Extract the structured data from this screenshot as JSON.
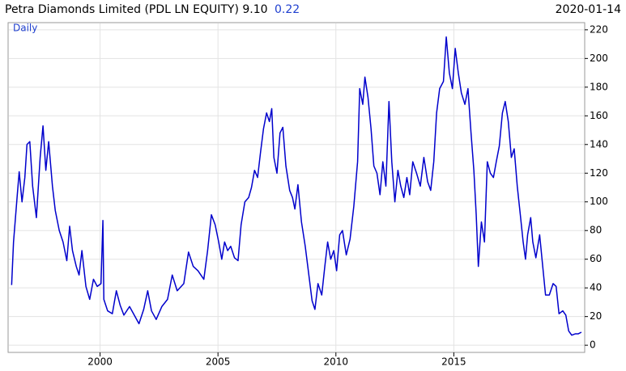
{
  "chart_data": {
    "type": "line",
    "title": "Petra Diamonds Limited (PDL LN EQUITY) 9.10",
    "title_change": "0.22",
    "date": "2020-01-14",
    "series_label": "Daily",
    "color": "#0000cc",
    "grid": true,
    "xlim": [
      1996.1,
      2020.55
    ],
    "xticks": [
      2000,
      2005,
      2010,
      2015
    ],
    "ylim": [
      -5,
      225
    ],
    "yticks": [
      0,
      20,
      40,
      60,
      80,
      100,
      120,
      140,
      160,
      180,
      200,
      220
    ],
    "x": [
      1996.25,
      1996.33,
      1996.49,
      1996.57,
      1996.69,
      1996.81,
      1996.9,
      1997.02,
      1997.14,
      1997.3,
      1997.46,
      1997.58,
      1997.7,
      1997.82,
      1997.98,
      1998.1,
      1998.27,
      1998.43,
      1998.59,
      1998.71,
      1998.83,
      1998.99,
      1999.11,
      1999.23,
      1999.4,
      1999.56,
      1999.72,
      1999.88,
      2000.04,
      2000.12,
      2000.16,
      2000.32,
      2000.52,
      2000.69,
      2000.85,
      2001.01,
      2001.25,
      2001.45,
      2001.65,
      2001.85,
      2002.02,
      2002.18,
      2002.38,
      2002.62,
      2002.86,
      2003.06,
      2003.27,
      2003.55,
      2003.75,
      2003.95,
      2004.15,
      2004.4,
      2004.56,
      2004.72,
      2004.88,
      2005.03,
      2005.16,
      2005.28,
      2005.41,
      2005.54,
      2005.7,
      2005.85,
      2005.98,
      2006.14,
      2006.3,
      2006.42,
      2006.55,
      2006.68,
      2006.8,
      2006.93,
      2007.06,
      2007.18,
      2007.28,
      2007.37,
      2007.5,
      2007.63,
      2007.75,
      2007.88,
      2008.04,
      2008.16,
      2008.26,
      2008.39,
      2008.54,
      2008.7,
      2008.83,
      2008.99,
      2009.11,
      2009.24,
      2009.4,
      2009.53,
      2009.65,
      2009.78,
      2009.91,
      2010.03,
      2010.16,
      2010.28,
      2010.44,
      2010.6,
      2010.76,
      2010.92,
      2011.01,
      2011.14,
      2011.23,
      2011.36,
      2011.49,
      2011.61,
      2011.74,
      2011.87,
      2011.99,
      2012.12,
      2012.25,
      2012.37,
      2012.5,
      2012.63,
      2012.75,
      2012.88,
      2013.01,
      2013.13,
      2013.26,
      2013.42,
      2013.58,
      2013.73,
      2013.89,
      2014.02,
      2014.15,
      2014.27,
      2014.4,
      2014.56,
      2014.68,
      2014.81,
      2014.94,
      2015.06,
      2015.19,
      2015.32,
      2015.47,
      2015.6,
      2015.73,
      2015.85,
      2015.95,
      2016.04,
      2016.17,
      2016.3,
      2016.42,
      2016.55,
      2016.68,
      2016.8,
      2016.93,
      2017.06,
      2017.18,
      2017.31,
      2017.44,
      2017.56,
      2017.69,
      2017.82,
      2017.94,
      2018.04,
      2018.13,
      2018.26,
      2018.35,
      2018.48,
      2018.64,
      2018.77,
      2018.89,
      2019.05,
      2019.21,
      2019.34,
      2019.46,
      2019.62,
      2019.75,
      2019.87,
      2020.0,
      2020.16,
      2020.28,
      2020.41
    ],
    "values": [
      42,
      72,
      105,
      121,
      100,
      117,
      140,
      142,
      111,
      89,
      131,
      153,
      122,
      142,
      111,
      94,
      80,
      72,
      59,
      83,
      66,
      55,
      49,
      66,
      41,
      32,
      46,
      41,
      43,
      87,
      32,
      24,
      22,
      38,
      28,
      21,
      27,
      21,
      15,
      25,
      38,
      24,
      18,
      27,
      32,
      49,
      38,
      43,
      65,
      55,
      52,
      46,
      66,
      91,
      84,
      72,
      60,
      72,
      66,
      69,
      61,
      59,
      84,
      100,
      103,
      110,
      122,
      117,
      134,
      151,
      162,
      156,
      165,
      131,
      120,
      148,
      152,
      125,
      108,
      103,
      95,
      112,
      86,
      69,
      52,
      31,
      25,
      43,
      35,
      55,
      72,
      60,
      66,
      52,
      77,
      80,
      63,
      74,
      97,
      128,
      179,
      168,
      187,
      173,
      151,
      125,
      120,
      105,
      128,
      111,
      170,
      128,
      100,
      122,
      111,
      103,
      117,
      105,
      128,
      120,
      111,
      131,
      114,
      108,
      128,
      162,
      179,
      184,
      215,
      190,
      179,
      207,
      190,
      176,
      168,
      179,
      148,
      122,
      91,
      55,
      86,
      72,
      128,
      120,
      117,
      128,
      139,
      162,
      170,
      156,
      131,
      137,
      111,
      91,
      72,
      60,
      77,
      89,
      72,
      61,
      77,
      55,
      35,
      35,
      43,
      41,
      22,
      24,
      21,
      10,
      7,
      8,
      8,
      9.1
    ]
  }
}
